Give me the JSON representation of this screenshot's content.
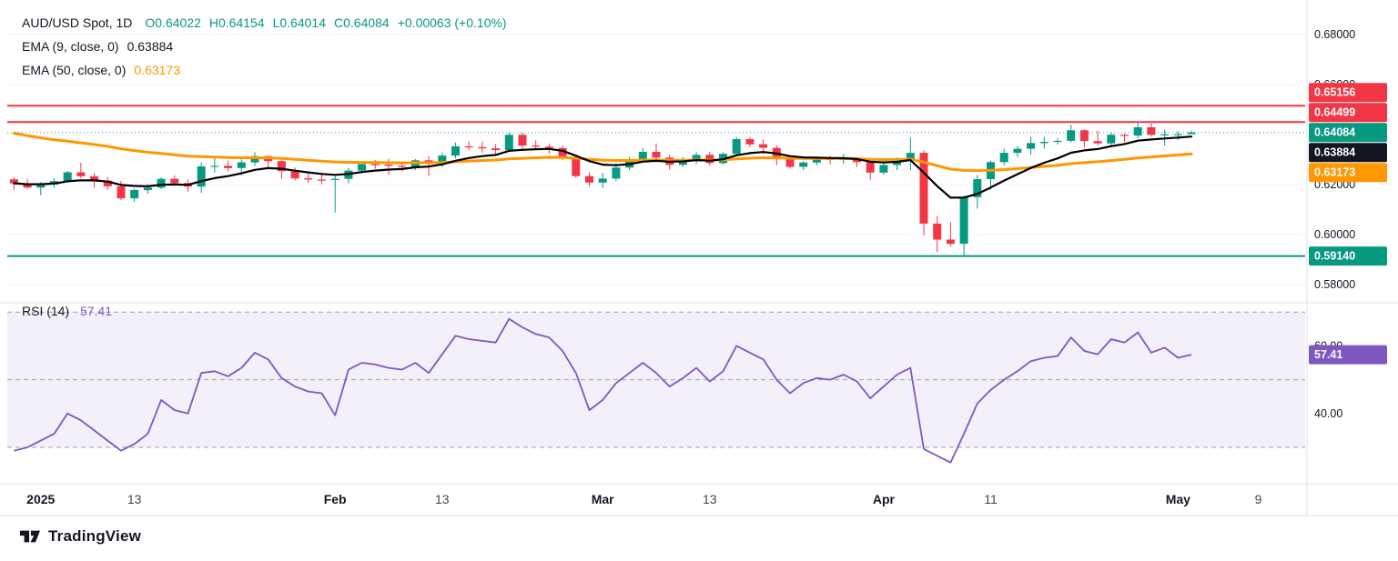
{
  "header": {
    "title": "AUD/USD Spot, 1D",
    "open": "O0.64022",
    "high": "H0.64154",
    "low": "L0.64014",
    "close": "C0.64084",
    "change": "+0.00063 (+0.10%)",
    "ema9_label": "EMA (9, close, 0)",
    "ema9_value": "0.63884",
    "ema50_label": "EMA (50, close, 0)",
    "ema50_value": "0.63173"
  },
  "rsi_header": {
    "label": "RSI (14)",
    "value": "57.41"
  },
  "footer": {
    "brand": "TradingView"
  },
  "colors": {
    "up": "#089981",
    "down": "#f23645",
    "ema9": "#000000",
    "ema50": "#ff9800",
    "rsi": "#7e57c2",
    "axis_text": "#131722",
    "band": "rgba(126,87,194,0.09)",
    "grid": "#f0f3fa",
    "divider": "#e0e3eb"
  },
  "time_axis": {
    "ticks": [
      {
        "index": 2,
        "label": "2025",
        "strong": true
      },
      {
        "index": 9,
        "label": "13",
        "strong": false
      },
      {
        "index": 24,
        "label": "Feb",
        "strong": true
      },
      {
        "index": 32,
        "label": "13",
        "strong": false
      },
      {
        "index": 44,
        "label": "Mar",
        "strong": true
      },
      {
        "index": 52,
        "label": "13",
        "strong": false
      },
      {
        "index": 65,
        "label": "Apr",
        "strong": true
      },
      {
        "index": 73,
        "label": "11",
        "strong": false
      },
      {
        "index": 87,
        "label": "May",
        "strong": true
      },
      {
        "index": 93,
        "label": "9",
        "strong": false
      }
    ]
  },
  "chart_data": [
    {
      "type": "candlestick",
      "title": "AUD/USD Spot, 1D",
      "pane": "price",
      "y_range": [
        0.58,
        0.68
      ],
      "grid": true,
      "legend_position": "top-left",
      "axis_ticks": [
        {
          "price": 0.68,
          "label": "0.68000"
        },
        {
          "price": 0.66,
          "label": "0.66000"
        },
        {
          "price": 0.64,
          "label": "0.64000"
        },
        {
          "price": 0.62,
          "label": "0.62000"
        },
        {
          "price": 0.6,
          "label": "0.60000"
        },
        {
          "price": 0.58,
          "label": "0.58000"
        }
      ],
      "levels": [
        {
          "price": 0.65156,
          "label": "0.65156",
          "color": "red",
          "role": "resistance-1"
        },
        {
          "price": 0.64499,
          "label": "0.64499",
          "color": "red",
          "role": "resistance-2"
        },
        {
          "price": 0.5914,
          "label": "0.59140",
          "color": "green",
          "role": "support-1"
        }
      ],
      "last_price": {
        "price": 0.64084,
        "label": "0.64084"
      },
      "indicators": [
        {
          "name": "EMA",
          "period": 9,
          "value": 0.63884,
          "label": "0.63884",
          "color": "#000000",
          "badge": "#131722",
          "seed": 0.6205,
          "alpha": 0.2
        },
        {
          "name": "EMA",
          "period": 50,
          "value": 0.63173,
          "label": "0.63173",
          "color": "#ff9800",
          "badge": "#ff9800",
          "seed": 0.6415,
          "alpha": 0.045
        }
      ],
      "candles": [
        [
          0.6221,
          0.6229,
          0.6179,
          0.6205
        ],
        [
          0.6205,
          0.6223,
          0.6183,
          0.6188
        ],
        [
          0.6188,
          0.621,
          0.6157,
          0.6201
        ],
        [
          0.6201,
          0.6225,
          0.6187,
          0.6214
        ],
        [
          0.6214,
          0.6255,
          0.621,
          0.6249
        ],
        [
          0.6249,
          0.6288,
          0.6225,
          0.6233
        ],
        [
          0.6233,
          0.6247,
          0.6187,
          0.6216
        ],
        [
          0.6216,
          0.623,
          0.6179,
          0.6193
        ],
        [
          0.6193,
          0.6215,
          0.6139,
          0.6145
        ],
        [
          0.6145,
          0.6184,
          0.6131,
          0.6178
        ],
        [
          0.6178,
          0.6202,
          0.6163,
          0.6188
        ],
        [
          0.6188,
          0.623,
          0.6181,
          0.6223
        ],
        [
          0.6223,
          0.6237,
          0.6199,
          0.6206
        ],
        [
          0.6206,
          0.622,
          0.6171,
          0.6192
        ],
        [
          0.6192,
          0.6289,
          0.6167,
          0.6273
        ],
        [
          0.6273,
          0.6313,
          0.6248,
          0.6275
        ],
        [
          0.6275,
          0.6296,
          0.6252,
          0.6266
        ],
        [
          0.6266,
          0.6301,
          0.6236,
          0.6289
        ],
        [
          0.6289,
          0.633,
          0.6274,
          0.6314
        ],
        [
          0.6314,
          0.6317,
          0.6268,
          0.6294
        ],
        [
          0.6294,
          0.6297,
          0.6223,
          0.6254
        ],
        [
          0.6254,
          0.6268,
          0.6216,
          0.6225
        ],
        [
          0.6225,
          0.6246,
          0.6206,
          0.622
        ],
        [
          0.622,
          0.6241,
          0.6202,
          0.6219
        ],
        [
          0.6219,
          0.6235,
          0.6088,
          0.6223
        ],
        [
          0.6223,
          0.6267,
          0.6205,
          0.6256
        ],
        [
          0.6256,
          0.6294,
          0.6245,
          0.6282
        ],
        [
          0.6282,
          0.6299,
          0.6263,
          0.628
        ],
        [
          0.628,
          0.6303,
          0.6238,
          0.6275
        ],
        [
          0.6275,
          0.6288,
          0.6252,
          0.6271
        ],
        [
          0.6271,
          0.6302,
          0.6258,
          0.6297
        ],
        [
          0.6297,
          0.6313,
          0.6235,
          0.6283
        ],
        [
          0.6283,
          0.6327,
          0.627,
          0.6316
        ],
        [
          0.6316,
          0.6368,
          0.6305,
          0.6353
        ],
        [
          0.6353,
          0.6374,
          0.6338,
          0.635
        ],
        [
          0.635,
          0.6372,
          0.6327,
          0.6345
        ],
        [
          0.6345,
          0.6362,
          0.6317,
          0.6338
        ],
        [
          0.6338,
          0.6409,
          0.6331,
          0.6399
        ],
        [
          0.6399,
          0.6408,
          0.634,
          0.6356
        ],
        [
          0.6356,
          0.6377,
          0.634,
          0.6352
        ],
        [
          0.6352,
          0.6364,
          0.6324,
          0.6346
        ],
        [
          0.6346,
          0.6357,
          0.6297,
          0.6307
        ],
        [
          0.6307,
          0.6316,
          0.6227,
          0.6234
        ],
        [
          0.6234,
          0.6248,
          0.6192,
          0.6208
        ],
        [
          0.6208,
          0.6247,
          0.6187,
          0.6224
        ],
        [
          0.6224,
          0.6286,
          0.6215,
          0.6268
        ],
        [
          0.6268,
          0.6311,
          0.6258,
          0.63
        ],
        [
          0.63,
          0.6346,
          0.6291,
          0.6331
        ],
        [
          0.6331,
          0.6364,
          0.6301,
          0.6308
        ],
        [
          0.6308,
          0.6318,
          0.6259,
          0.6279
        ],
        [
          0.6279,
          0.631,
          0.6271,
          0.6296
        ],
        [
          0.6296,
          0.633,
          0.6284,
          0.6319
        ],
        [
          0.6319,
          0.6331,
          0.6275,
          0.6286
        ],
        [
          0.6286,
          0.633,
          0.628,
          0.6323
        ],
        [
          0.6323,
          0.6391,
          0.6318,
          0.6382
        ],
        [
          0.6382,
          0.639,
          0.635,
          0.6361
        ],
        [
          0.6361,
          0.638,
          0.6321,
          0.6347
        ],
        [
          0.6347,
          0.6357,
          0.6277,
          0.6302
        ],
        [
          0.6302,
          0.6316,
          0.6265,
          0.6271
        ],
        [
          0.6271,
          0.6295,
          0.6258,
          0.6288
        ],
        [
          0.6288,
          0.6312,
          0.6277,
          0.6303
        ],
        [
          0.6303,
          0.6315,
          0.628,
          0.63
        ],
        [
          0.63,
          0.6323,
          0.6282,
          0.6303
        ],
        [
          0.6303,
          0.631,
          0.6271,
          0.629
        ],
        [
          0.629,
          0.6296,
          0.6219,
          0.6248
        ],
        [
          0.6248,
          0.6287,
          0.624,
          0.6278
        ],
        [
          0.6278,
          0.631,
          0.6258,
          0.63
        ],
        [
          0.63,
          0.6389,
          0.6257,
          0.6327
        ],
        [
          0.6327,
          0.6337,
          0.5997,
          0.6044
        ],
        [
          0.6044,
          0.6074,
          0.593,
          0.598
        ],
        [
          0.598,
          0.605,
          0.5952,
          0.5963
        ],
        [
          0.5963,
          0.6157,
          0.5914,
          0.615
        ],
        [
          0.615,
          0.6238,
          0.6104,
          0.6222
        ],
        [
          0.6222,
          0.6296,
          0.618,
          0.629
        ],
        [
          0.629,
          0.6343,
          0.6277,
          0.6327
        ],
        [
          0.6327,
          0.6355,
          0.631,
          0.6343
        ],
        [
          0.6343,
          0.6391,
          0.632,
          0.6366
        ],
        [
          0.6366,
          0.6392,
          0.6343,
          0.6371
        ],
        [
          0.6371,
          0.6385,
          0.636,
          0.6375
        ],
        [
          0.6375,
          0.6439,
          0.637,
          0.6417
        ],
        [
          0.6417,
          0.6421,
          0.6347,
          0.6374
        ],
        [
          0.6374,
          0.6416,
          0.6356,
          0.6365
        ],
        [
          0.6365,
          0.6409,
          0.6352,
          0.6399
        ],
        [
          0.6399,
          0.6404,
          0.637,
          0.6396
        ],
        [
          0.6396,
          0.6447,
          0.6385,
          0.6429
        ],
        [
          0.6429,
          0.6445,
          0.6392,
          0.6399
        ],
        [
          0.6399,
          0.642,
          0.6356,
          0.6401
        ],
        [
          0.6401,
          0.6413,
          0.6379,
          0.6402
        ],
        [
          0.64022,
          0.64154,
          0.64014,
          0.64084
        ]
      ]
    },
    {
      "type": "line",
      "title": "RSI (14)",
      "pane": "rsi",
      "current": 57.41,
      "current_label": "57.41",
      "bands": {
        "upper": 70,
        "middle": 50,
        "lower": 30
      },
      "axis_ticks": [
        {
          "value": 60,
          "label": "60.00"
        },
        {
          "value": 40,
          "label": "40.00"
        }
      ],
      "values": [
        29,
        30,
        32,
        34,
        40,
        38,
        35,
        32,
        29,
        31,
        34,
        44,
        41,
        40,
        52,
        52.5,
        51,
        53.5,
        58,
        56,
        50.5,
        48,
        46.5,
        46,
        39.5,
        53,
        55,
        54.5,
        53.5,
        53,
        55,
        52,
        57.5,
        63,
        62,
        61.5,
        61,
        68,
        65.5,
        63.5,
        62.5,
        58.5,
        52,
        41,
        44,
        49,
        52,
        55,
        52,
        48,
        50.5,
        53.5,
        49.5,
        52.5,
        60,
        58,
        56,
        50,
        46,
        49,
        50.5,
        50,
        51.5,
        49.5,
        44.5,
        48,
        51.5,
        53.5,
        29.5,
        27.5,
        25.5,
        34,
        43,
        47,
        50,
        52.5,
        55.5,
        56.5,
        57,
        62.5,
        58.5,
        57.5,
        62,
        61,
        64,
        58,
        59.5,
        56.5,
        57.41
      ]
    }
  ]
}
